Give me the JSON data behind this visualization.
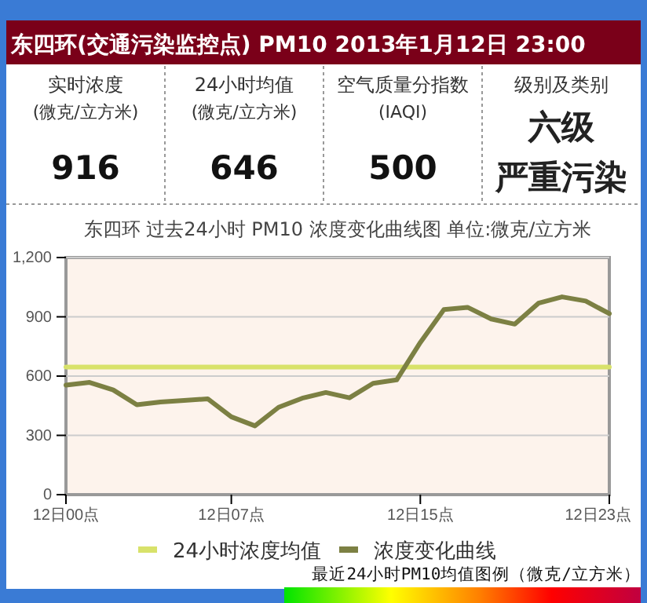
{
  "chart_data": [
    {
      "type": "other",
      "title": "东四环(交通污染监控点) PM10 2013年1月12日 23:00",
      "categories": [
        "实时浓度 (微克/立方米)",
        "24小时均值 (微克/立方米)",
        "空气质量分指数 (IAQI)",
        "级别及类别"
      ],
      "annotations": [
        "916",
        "646",
        "500",
        "六级",
        "严重污染"
      ]
    },
    {
      "type": "line",
      "title": "东四环 过去24小时 PM10 浓度变化曲线图 单位:微克/立方米",
      "categories": [
        "12日00点",
        null,
        null,
        null,
        null,
        null,
        null,
        "12日07点",
        null,
        null,
        null,
        null,
        null,
        null,
        null,
        "12日15点",
        null,
        null,
        null,
        null,
        null,
        null,
        null,
        "12日23点"
      ],
      "series": [
        {
          "name": "24小时浓度均值",
          "color": "#d8e26a",
          "values": [
            646,
            646,
            646,
            646,
            646,
            646,
            646,
            646,
            646,
            646,
            646,
            646,
            646,
            646,
            646,
            646,
            646,
            646,
            646,
            646,
            646,
            646,
            646,
            646
          ]
        },
        {
          "name": "浓度变化曲线",
          "color": "#7c8043",
          "values": [
            554,
            568,
            530,
            455,
            469,
            477,
            485,
            394,
            348,
            442,
            488,
            517,
            490,
            563,
            581,
            770,
            937,
            948,
            889,
            863,
            969,
            1001,
            980,
            916
          ]
        }
      ],
      "ylim": [
        0,
        1200
      ],
      "yticks": [
        0,
        300,
        600,
        900,
        {
          "value": 1200,
          "label": "1,200"
        }
      ],
      "grid": "y",
      "legend": "bottom",
      "annotations": [
        "最近24小时PM10均值图例（微克/立方米）"
      ]
    }
  ]
}
